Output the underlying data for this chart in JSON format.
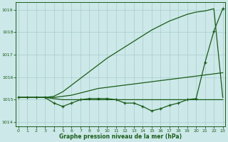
{
  "x": [
    0,
    1,
    2,
    3,
    4,
    5,
    6,
    7,
    8,
    9,
    10,
    11,
    12,
    13,
    14,
    15,
    16,
    17,
    18,
    19,
    20,
    21,
    22,
    23
  ],
  "line_measured": [
    1015.1,
    1015.1,
    1015.1,
    1015.1,
    1014.85,
    1014.7,
    1014.85,
    1015.0,
    1015.05,
    1015.05,
    1015.05,
    1015.0,
    1014.85,
    1014.85,
    1014.7,
    1014.5,
    1014.6,
    1014.75,
    1014.85,
    1015.0,
    1015.05,
    1016.65,
    1018.05,
    1019.05
  ],
  "line_flat": [
    1015.1,
    1015.1,
    1015.1,
    1015.1,
    1015.05,
    1015.0,
    1015.0,
    1015.0,
    1015.0,
    1015.0,
    1015.0,
    1015.0,
    1015.0,
    1015.0,
    1015.0,
    1015.0,
    1015.0,
    1015.0,
    1015.0,
    1015.0,
    1015.0,
    1015.0,
    1015.0,
    1015.0
  ],
  "line_mid": [
    1015.1,
    1015.1,
    1015.1,
    1015.1,
    1015.1,
    1015.15,
    1015.2,
    1015.3,
    1015.4,
    1015.5,
    1015.55,
    1015.6,
    1015.65,
    1015.7,
    1015.75,
    1015.8,
    1015.85,
    1015.9,
    1015.95,
    1016.0,
    1016.05,
    1016.1,
    1016.15,
    1016.2
  ],
  "line_steep": [
    1015.1,
    1015.1,
    1015.1,
    1015.1,
    1015.15,
    1015.35,
    1015.65,
    1015.95,
    1016.25,
    1016.55,
    1016.85,
    1017.1,
    1017.35,
    1017.6,
    1017.85,
    1018.1,
    1018.3,
    1018.5,
    1018.65,
    1018.8,
    1018.9,
    1018.95,
    1019.05,
    1015.1
  ],
  "ylim": [
    1013.8,
    1019.35
  ],
  "yticks": [
    1014,
    1015,
    1016,
    1017,
    1018,
    1019
  ],
  "xlim": [
    -0.3,
    23.3
  ],
  "xticks": [
    0,
    1,
    2,
    3,
    4,
    5,
    6,
    7,
    8,
    9,
    10,
    11,
    12,
    13,
    14,
    15,
    16,
    17,
    18,
    19,
    20,
    21,
    22,
    23
  ],
  "xlabel": "Graphe pression niveau de la mer (hPa)",
  "bg_color": "#cce8e8",
  "grid_color": "#aacccc",
  "line_color": "#1a5c1a",
  "axis_color": "#1a5c1a"
}
